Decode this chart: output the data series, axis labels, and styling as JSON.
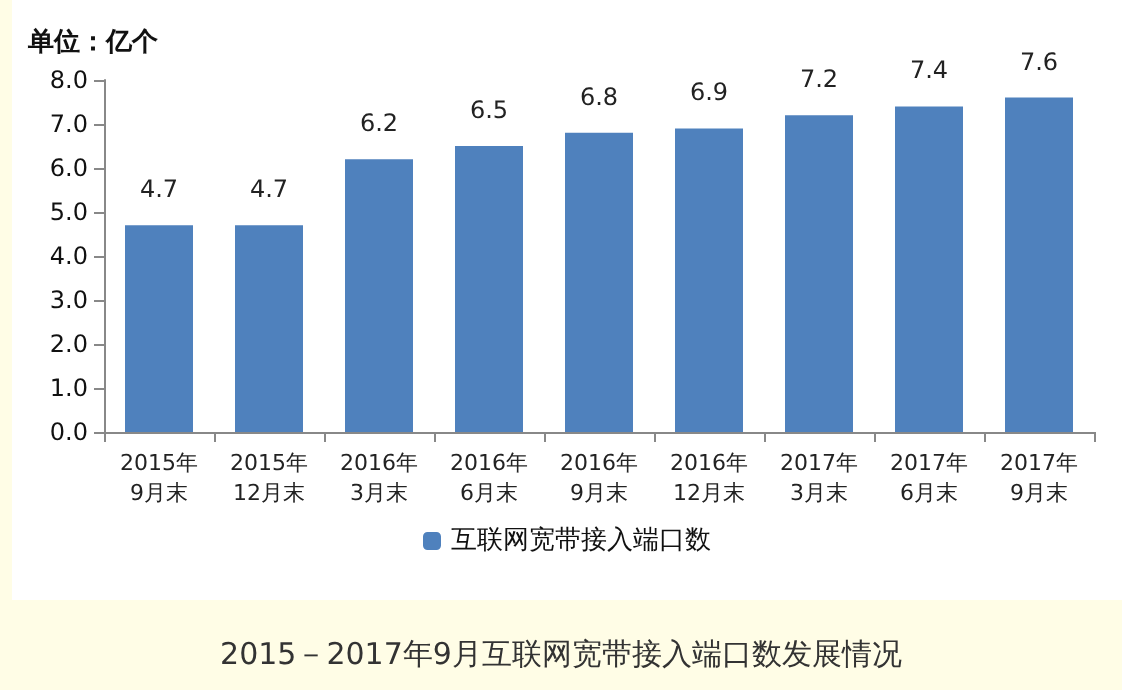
{
  "chart_data": {
    "type": "bar",
    "title": "2015－2017年9月互联网宽带接入端口数发展情况",
    "ylabel": "单位：亿个",
    "categories": [
      "2015年\n9月末",
      "2015年\n12月末",
      "2016年\n3月末",
      "2016年\n6月末",
      "2016年\n9月末",
      "2016年\n12月末",
      "2017年\n3月末",
      "2017年\n6月末",
      "2017年\n9月末"
    ],
    "series": [
      {
        "name": "互联网宽带接入端口数",
        "color": "#4f81bd",
        "values": [
          4.7,
          4.7,
          6.2,
          6.5,
          6.8,
          6.9,
          7.2,
          7.4,
          7.6
        ]
      }
    ],
    "ylim": [
      0,
      8
    ],
    "yticks": [
      {
        "value": 0,
        "label": "0.0"
      },
      {
        "value": 1,
        "label": "1.0"
      },
      {
        "value": 2,
        "label": "2.0"
      },
      {
        "value": 3,
        "label": "3.0"
      },
      {
        "value": 4,
        "label": "4.0"
      },
      {
        "value": 5,
        "label": "5.0"
      },
      {
        "value": 6,
        "label": "6.0"
      },
      {
        "value": 7,
        "label": "7.0"
      },
      {
        "value": 8,
        "label": "8.0"
      }
    ],
    "grid": false,
    "legend": "bottom",
    "data_labels": true
  }
}
